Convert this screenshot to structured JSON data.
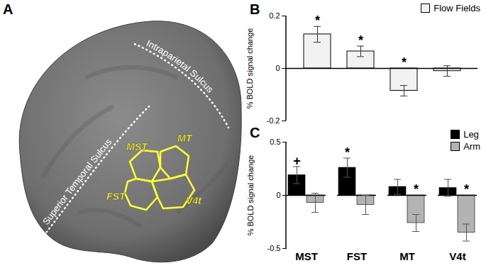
{
  "panel_labels": [
    "A",
    "B",
    "C"
  ],
  "brain": {
    "sulci": [
      "Intraparietal Sulcus",
      "Superior Temporal Sulcus"
    ],
    "regions": [
      "MST",
      "MT",
      "FST",
      "V4t"
    ]
  },
  "chart_data": [
    {
      "type": "bar",
      "categories": [
        null,
        null,
        null,
        null
      ],
      "series": [
        {
          "name": "Flow Fields",
          "color": "#f2f2f2",
          "values": [
            0.13,
            0.065,
            -0.085,
            -0.01
          ],
          "errors": [
            0.03,
            0.02,
            0.02,
            0.02
          ],
          "annotations": [
            "*",
            "*",
            "*",
            null
          ]
        }
      ],
      "ylabel": "% BOLD signal change",
      "ylim": [
        -0.2,
        0.2
      ],
      "yticks": [
        -0.2,
        0,
        0.2
      ],
      "tick_labels": "y",
      "legend": "top-right"
    },
    {
      "type": "bar",
      "categories": [
        "MST",
        "FST",
        "MT",
        "V4t"
      ],
      "series": [
        {
          "name": "Leg",
          "color": "#000000",
          "values": [
            0.19,
            0.26,
            0.08,
            0.07
          ],
          "errors": [
            0.08,
            0.09,
            0.07,
            0.08
          ],
          "annotations": [
            "+",
            "*",
            null,
            null
          ]
        },
        {
          "name": "Arm",
          "color": "#b3b3b3",
          "values": [
            -0.07,
            -0.09,
            -0.26,
            -0.35
          ],
          "errors": [
            0.09,
            0.09,
            0.08,
            0.08
          ],
          "annotations": [
            null,
            null,
            "*",
            "*"
          ]
        }
      ],
      "ylabel": "% BOLD signal change",
      "ylim": [
        -0.5,
        0.5
      ],
      "yticks": [
        -0.5,
        0,
        0.5
      ],
      "legend": "top-right"
    }
  ]
}
